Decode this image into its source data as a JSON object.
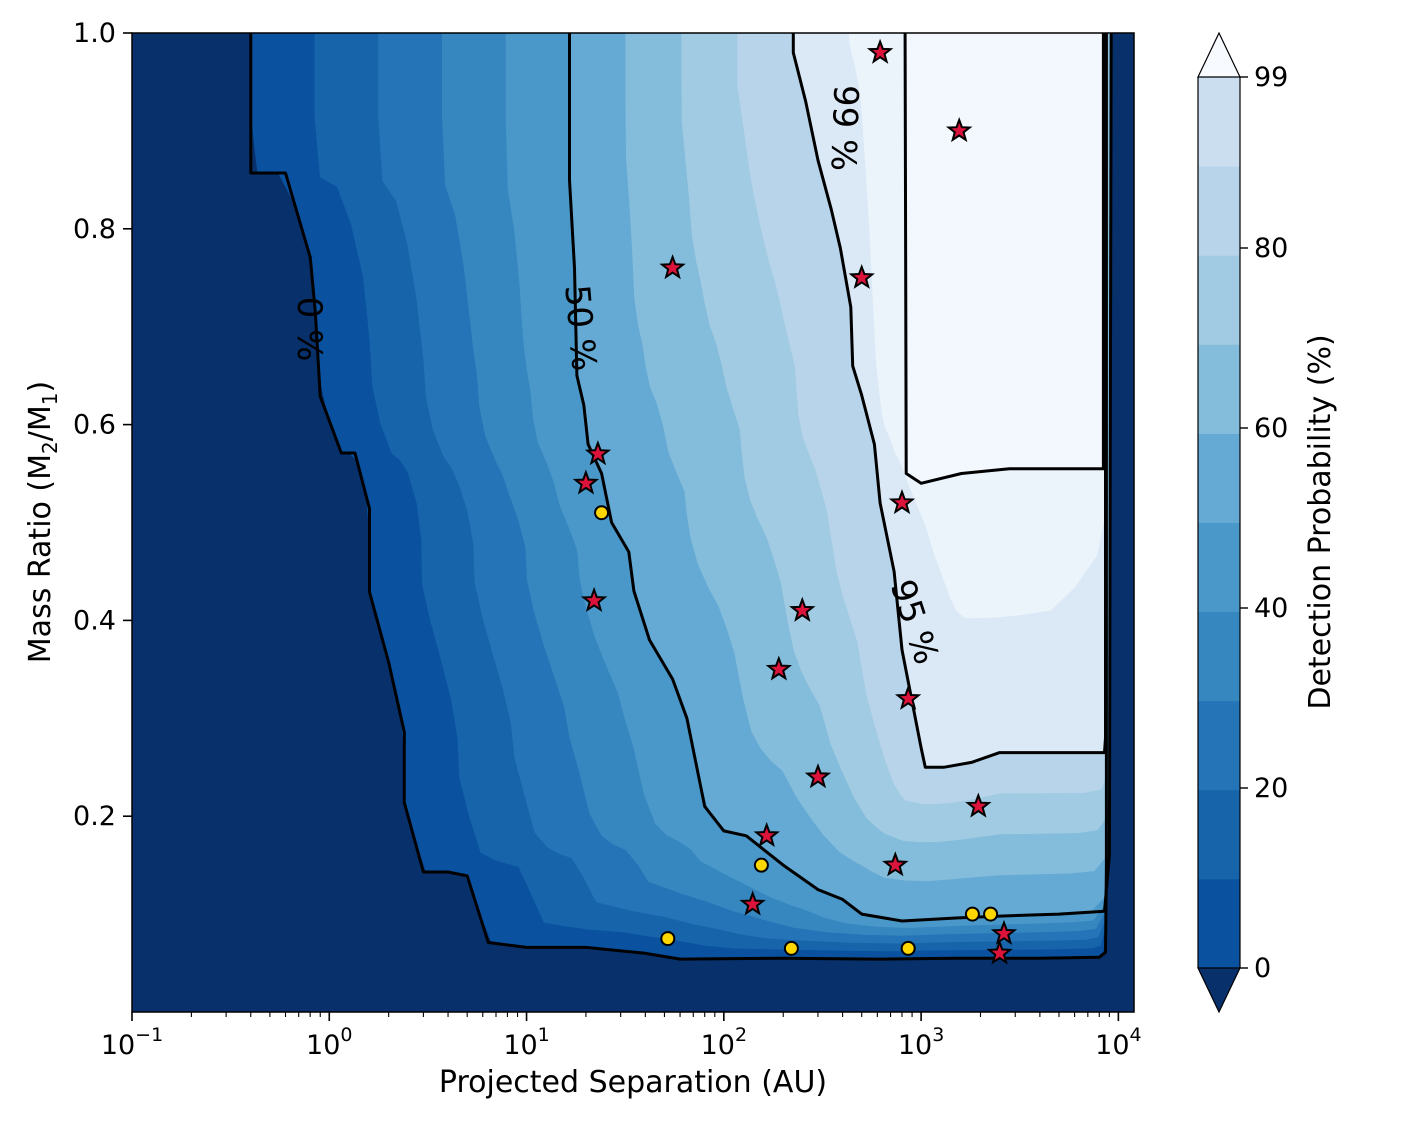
{
  "chart_data": {
    "type": "contour",
    "xlabel": "Projected Separation (AU)",
    "ylabel": "Mass Ratio (M2/M1)",
    "ylabel_parts": {
      "main": "Mass Ratio (M",
      "sub1": "2",
      "mid": "/M",
      "sub2": "1",
      "end": ")"
    },
    "xscale": "log",
    "xlim": [
      0.1,
      12000
    ],
    "ylim": [
      0.0,
      1.0
    ],
    "x_ticks": [
      {
        "value": 0.1,
        "base": "10",
        "exp": "−1"
      },
      {
        "value": 1,
        "base": "10",
        "exp": "0"
      },
      {
        "value": 10,
        "base": "10",
        "exp": "1"
      },
      {
        "value": 100,
        "base": "10",
        "exp": "2"
      },
      {
        "value": 1000,
        "base": "10",
        "exp": "3"
      },
      {
        "value": 10000,
        "base": "10",
        "exp": "4"
      }
    ],
    "y_ticks": [
      {
        "value": 0.2,
        "label": "0.2"
      },
      {
        "value": 0.4,
        "label": "0.4"
      },
      {
        "value": 0.6,
        "label": "0.6"
      },
      {
        "value": 0.8,
        "label": "0.8"
      },
      {
        "value": 1.0,
        "label": "1.0"
      }
    ],
    "colorbar": {
      "label": "Detection Probability (%)",
      "range": [
        0,
        99
      ],
      "extend": "both",
      "ticks": [
        {
          "value": 0,
          "label": "0"
        },
        {
          "value": 20,
          "label": "20"
        },
        {
          "value": 40,
          "label": "40"
        },
        {
          "value": 60,
          "label": "60"
        },
        {
          "value": 80,
          "label": "80"
        },
        {
          "value": 99,
          "label": "99"
        }
      ],
      "levels": [
        0,
        9.9,
        19.8,
        29.7,
        39.6,
        49.5,
        59.4,
        69.3,
        79.2,
        89.1,
        99
      ],
      "colors": [
        "#0a52a0",
        "#1764ab",
        "#2474b7",
        "#3686c0",
        "#4a98c9",
        "#65aad4",
        "#84bcdb",
        "#a1cbe2",
        "#b7d4ea",
        "#cadef0",
        "#dbe9f6",
        "#ebf3fb",
        "#f2f8fd"
      ],
      "under_color": "#08306b",
      "over_color": "#f7fbff"
    },
    "contour_labels": [
      "0 %",
      "50 %",
      "95 %",
      "99 %"
    ],
    "contours": [
      {
        "level": 0,
        "label": "0 %",
        "points": [
          [
            0.4,
            1.0
          ],
          [
            0.4,
            0.857
          ],
          [
            0.6,
            0.857
          ],
          [
            0.8,
            0.771
          ],
          [
            0.85,
            0.714
          ],
          [
            0.9,
            0.629
          ],
          [
            1.15,
            0.571
          ],
          [
            1.35,
            0.571
          ],
          [
            1.6,
            0.514
          ],
          [
            1.6,
            0.429
          ],
          [
            2.0,
            0.357
          ],
          [
            2.4,
            0.286
          ],
          [
            2.4,
            0.214
          ],
          [
            3.0,
            0.143
          ],
          [
            4.0,
            0.143
          ],
          [
            5.0,
            0.139
          ],
          [
            6.4,
            0.071
          ],
          [
            10,
            0.066
          ],
          [
            20,
            0.066
          ],
          [
            40,
            0.06
          ],
          [
            60,
            0.054
          ],
          [
            200,
            0.055
          ],
          [
            600,
            0.054
          ],
          [
            1500,
            0.055
          ],
          [
            4000,
            0.055
          ],
          [
            8000,
            0.056
          ],
          [
            8600,
            0.061
          ],
          [
            8700,
            0.15
          ],
          [
            8700,
            1.0
          ]
        ]
      },
      {
        "level": 50,
        "label": "50 %",
        "points": [
          [
            16.5,
            1.0
          ],
          [
            16.5,
            0.85
          ],
          [
            17.5,
            0.76
          ],
          [
            18,
            0.65
          ],
          [
            19.5,
            0.62
          ],
          [
            20.5,
            0.58
          ],
          [
            24,
            0.55
          ],
          [
            27,
            0.5
          ],
          [
            33,
            0.47
          ],
          [
            35,
            0.43
          ],
          [
            42,
            0.38
          ],
          [
            55,
            0.34
          ],
          [
            65,
            0.3
          ],
          [
            80,
            0.21
          ],
          [
            100,
            0.185
          ],
          [
            130,
            0.18
          ],
          [
            150,
            0.17
          ],
          [
            200,
            0.15
          ],
          [
            300,
            0.125
          ],
          [
            400,
            0.115
          ],
          [
            500,
            0.1
          ],
          [
            800,
            0.093
          ],
          [
            1500,
            0.096
          ],
          [
            2500,
            0.098
          ],
          [
            5000,
            0.1
          ],
          [
            8500,
            0.103
          ],
          [
            9000,
            0.16
          ],
          [
            9200,
            1.0
          ]
        ]
      },
      {
        "level": 95,
        "label": "95 %",
        "points": [
          [
            225,
            1.0
          ],
          [
            225,
            0.98
          ],
          [
            260,
            0.93
          ],
          [
            300,
            0.87
          ],
          [
            350,
            0.82
          ],
          [
            390,
            0.78
          ],
          [
            440,
            0.72
          ],
          [
            450,
            0.66
          ],
          [
            500,
            0.63
          ],
          [
            580,
            0.58
          ],
          [
            620,
            0.52
          ],
          [
            730,
            0.45
          ],
          [
            800,
            0.37
          ],
          [
            1000,
            0.27
          ],
          [
            1050,
            0.25
          ],
          [
            1300,
            0.25
          ],
          [
            1800,
            0.255
          ],
          [
            2500,
            0.265
          ],
          [
            8500,
            0.265
          ],
          [
            8600,
            0.28
          ],
          [
            8600,
            1.0
          ]
        ]
      },
      {
        "level": 99,
        "label": "99 %",
        "points": [
          [
            830,
            1.0
          ],
          [
            830,
            0.995
          ],
          [
            840,
            0.55
          ],
          [
            1000,
            0.54
          ],
          [
            1600,
            0.55
          ],
          [
            2800,
            0.555
          ],
          [
            8400,
            0.555
          ],
          [
            8400,
            1.0
          ]
        ]
      }
    ],
    "series": [
      {
        "name": "",
        "marker": "star",
        "color": "#dc143c",
        "points": [
          [
            620,
            0.98
          ],
          [
            1560,
            0.9
          ],
          [
            55,
            0.76
          ],
          [
            500,
            0.75
          ],
          [
            23,
            0.57
          ],
          [
            20,
            0.54
          ],
          [
            800,
            0.52
          ],
          [
            22,
            0.42
          ],
          [
            250,
            0.41
          ],
          [
            190,
            0.35
          ],
          [
            860,
            0.32
          ],
          [
            300,
            0.24
          ],
          [
            1950,
            0.21
          ],
          [
            165,
            0.18
          ],
          [
            740,
            0.15
          ],
          [
            140,
            0.11
          ],
          [
            2630,
            0.08
          ],
          [
            2500,
            0.06
          ]
        ]
      },
      {
        "name": "",
        "marker": "circle",
        "color": "#ffd700",
        "points": [
          [
            24,
            0.51
          ],
          [
            155,
            0.15
          ],
          [
            1820,
            0.1
          ],
          [
            2250,
            0.1
          ],
          [
            52,
            0.075
          ],
          [
            220,
            0.065
          ],
          [
            860,
            0.065
          ]
        ]
      }
    ]
  }
}
